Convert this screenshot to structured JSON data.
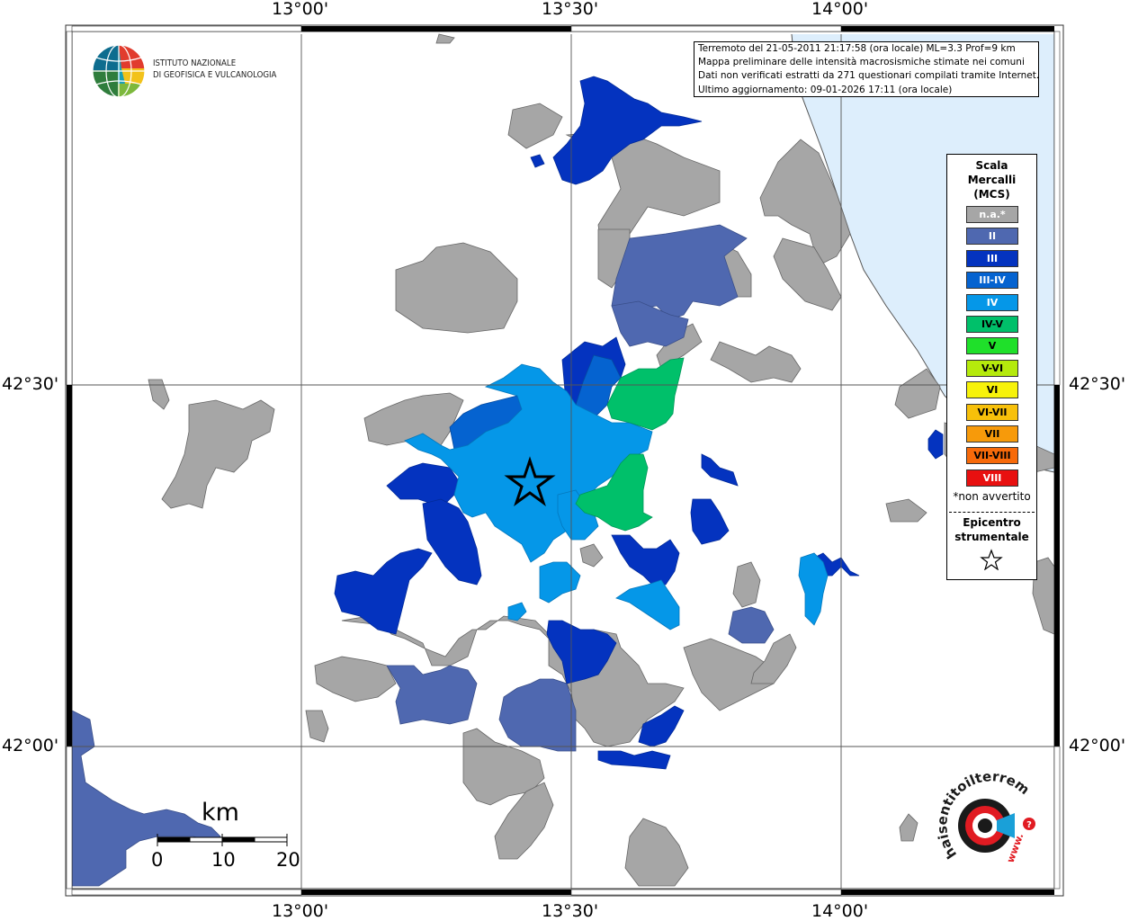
{
  "axes": {
    "top_labels": [
      "13°00'",
      "13°30'",
      "14°00'"
    ],
    "bottom_labels": [
      "13°00'",
      "13°30'",
      "14°00'"
    ],
    "left_labels": [
      "42°30'",
      "42°00'"
    ],
    "right_labels": [
      "42°30'",
      "42°00'"
    ]
  },
  "institute": {
    "line1": "ISTITUTO NAZIONALE",
    "line2": "DI GEOFISICA E VULCANOLOGIA"
  },
  "info": {
    "line1": "Terremoto del 21-05-2011 21:17:58 (ora locale) ML=3.3 Prof=9 km",
    "line2": "Mappa preliminare delle intensità macrosismiche stimate nei comuni",
    "line3": "Dati non verificati estratti da 271 questionari compilati tramite Internet.",
    "line4": "Ultimo aggiornamento: 09-01-2026 17:11 (ora locale)"
  },
  "legend": {
    "title_line1": "Scala",
    "title_line2": "Mercalli",
    "title_line3": "(MCS)",
    "items": [
      {
        "label": "n.a.*",
        "color": "#a6a6a6",
        "text_color": "#ffffff"
      },
      {
        "label": "II",
        "color": "#4f68b0",
        "text_color": "#ffffff"
      },
      {
        "label": "III",
        "color": "#0433bf",
        "text_color": "#ffffff"
      },
      {
        "label": "III-IV",
        "color": "#0563d0",
        "text_color": "#ffffff"
      },
      {
        "label": "IV",
        "color": "#0597e8",
        "text_color": "#ffffff"
      },
      {
        "label": "IV-V",
        "color": "#00c06a",
        "text_color": "#000000"
      },
      {
        "label": "V",
        "color": "#1fe02a",
        "text_color": "#000000"
      },
      {
        "label": "V-VI",
        "color": "#b5ea0c",
        "text_color": "#000000"
      },
      {
        "label": "VI",
        "color": "#f7f20a",
        "text_color": "#000000"
      },
      {
        "label": "VI-VII",
        "color": "#f7c00a",
        "text_color": "#000000"
      },
      {
        "label": "VII",
        "color": "#f79a0a",
        "text_color": "#000000"
      },
      {
        "label": "VII-VIII",
        "color": "#f76a0a",
        "text_color": "#000000"
      },
      {
        "label": "VIII",
        "color": "#e81010",
        "text_color": "#ffffff"
      }
    ],
    "note": "*non avvertito",
    "epicenter_line1": "Epicentro",
    "epicenter_line2": "strumentale"
  },
  "scale_bar": {
    "unit": "km",
    "labels": [
      "0",
      "10",
      "20"
    ]
  },
  "colors": {
    "sea": "#ddeefc",
    "not_available": "#a6a6a6",
    "II": "#4f68b0",
    "III": "#0433bf",
    "III-IV": "#0563d0",
    "IV": "#0597e8",
    "IV-V": "#00c06a"
  },
  "logo_text": {
    "brand_line1": "haisentitoilterremoto.it",
    "brand_line2": "www."
  }
}
